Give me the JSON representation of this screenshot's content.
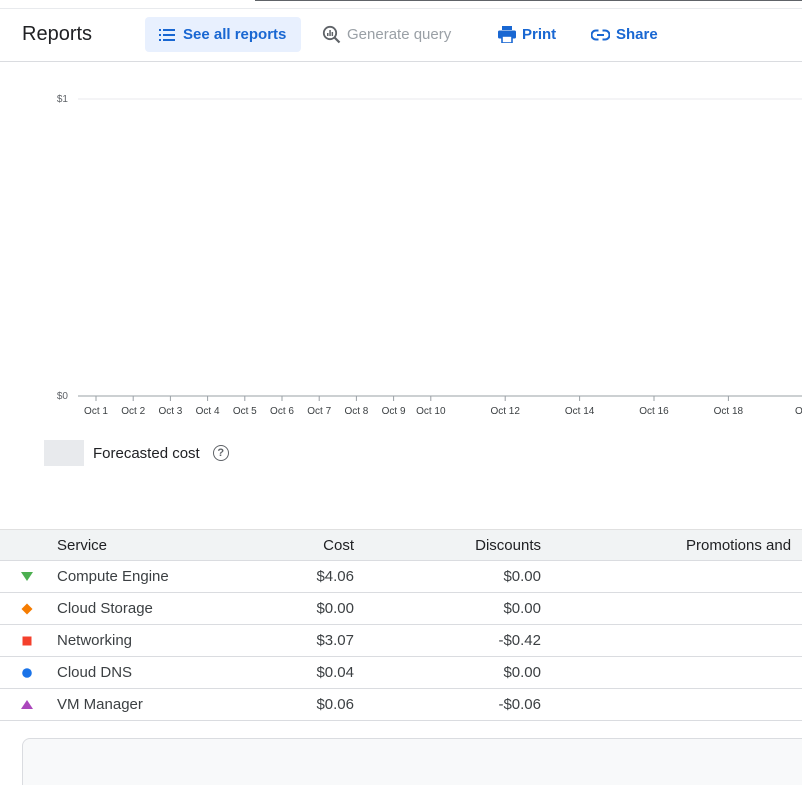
{
  "header": {
    "title": "Reports",
    "buttons": {
      "see_all": "See all reports",
      "generate_query": "Generate query",
      "print": "Print",
      "share": "Share"
    }
  },
  "chart_data": {
    "type": "line",
    "yticks": [
      "$1",
      "$0"
    ],
    "ylim": [
      0,
      1
    ],
    "x": [
      "Oct 1",
      "Oct 2",
      "Oct 3",
      "Oct 4",
      "Oct 5",
      "Oct 6",
      "Oct 7",
      "Oct 8",
      "Oct 9",
      "Oct 10",
      "Oct 12",
      "Oct 14",
      "Oct 16",
      "Oct 18",
      "Oct"
    ],
    "series": [],
    "grid": true
  },
  "legend": {
    "label": "Forecasted cost",
    "help_icon": "help-circle-icon",
    "help_glyph": "?",
    "swatch_color": "#e8eaed"
  },
  "table": {
    "columns": [
      "Service",
      "Cost",
      "Discounts",
      "Promotions and"
    ],
    "rows": [
      {
        "marker": "triangle-down",
        "color": "#4caf50",
        "service": "Compute Engine",
        "cost": "$4.06",
        "discounts": "$0.00"
      },
      {
        "marker": "diamond",
        "color": "#f57c00",
        "service": "Cloud Storage",
        "cost": "$0.00",
        "discounts": "$0.00"
      },
      {
        "marker": "square",
        "color": "#f4402c",
        "service": "Networking",
        "cost": "$3.07",
        "discounts": "-$0.42"
      },
      {
        "marker": "circle",
        "color": "#1a73e8",
        "service": "Cloud DNS",
        "cost": "$0.04",
        "discounts": "$0.00"
      },
      {
        "marker": "triangle-up",
        "color": "#ab47bc",
        "service": "VM Manager",
        "cost": "$0.06",
        "discounts": "-$0.06"
      }
    ]
  }
}
